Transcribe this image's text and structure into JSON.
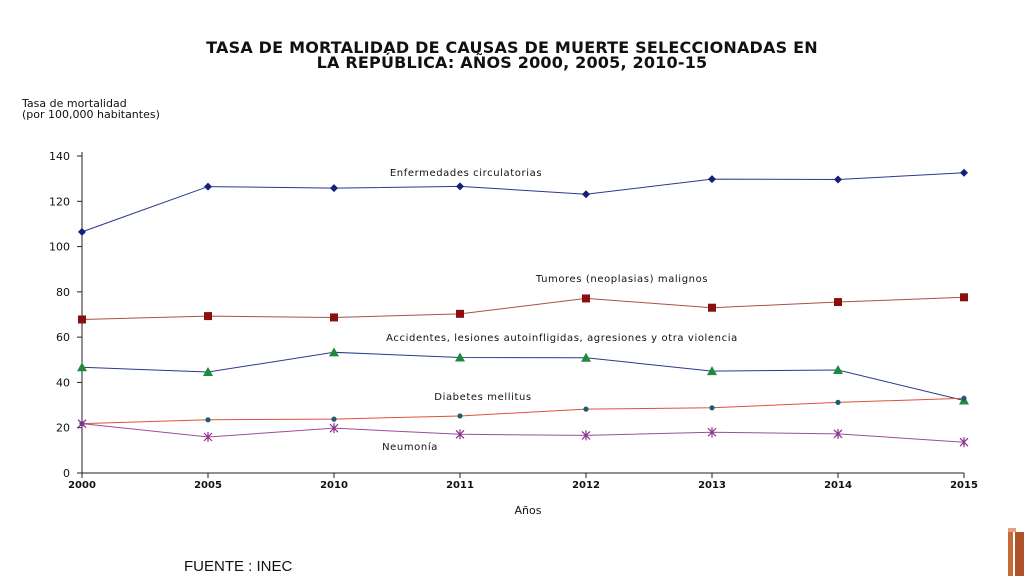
{
  "chart_data": {
    "type": "line",
    "title_lines": [
      "TASA DE MORTALIDAD  DE CAUSAS DE MUERTE  SELECCIONADAS EN",
      "LA REPÚBLICA:  AÑOS 2000, 2005, 2010-15"
    ],
    "ylabel_lines": [
      "Tasa de mortalidad",
      "(por 100,000 habitantes)"
    ],
    "xlabel": "Años",
    "categories": [
      "2000",
      "2005",
      "2010",
      "2011",
      "2012",
      "2013",
      "2014",
      "2015"
    ],
    "yticks": [
      0,
      20,
      40,
      60,
      80,
      100,
      120,
      140
    ],
    "ylim": [
      0,
      140
    ],
    "grid": false,
    "series": [
      {
        "name": "Enfermedades circulatorias",
        "color": "#2a3a8c",
        "marker": "diamond",
        "values": [
          106.5,
          126.5,
          125.8,
          126.6,
          123.1,
          129.8,
          129.6,
          132.6
        ]
      },
      {
        "name": "Tumores (neoplasias) malignos",
        "color": "#a6504a",
        "marker": "square",
        "values": [
          67.8,
          69.3,
          68.7,
          70.3,
          77.1,
          73.0,
          75.5,
          77.6
        ]
      },
      {
        "name": "Accidentes, lesiones autoinfligidas, agresiones y otra violencia",
        "color": "#2a3a8c",
        "marker": "triangle",
        "values": [
          46.7,
          44.6,
          53.3,
          51.0,
          50.9,
          45.0,
          45.5,
          32.0
        ]
      },
      {
        "name": "Diabetes mellitus",
        "color": "#e0503a",
        "marker": "dot",
        "values": [
          21.8,
          23.5,
          23.8,
          25.2,
          28.2,
          28.8,
          31.2,
          33.0
        ]
      },
      {
        "name": "Neumonía",
        "color": "#9a4e9a",
        "marker": "star",
        "values": [
          21.8,
          15.9,
          19.8,
          17.1,
          16.6,
          18.0,
          17.3,
          13.6
        ]
      }
    ],
    "marker_colors": {
      "diamond": "#14207a",
      "square": "#8a1010",
      "triangle": "#1f8a3c",
      "dot": "#1d5e6e",
      "star": "#8a2f8a"
    }
  },
  "source": "FUENTE : INEC"
}
